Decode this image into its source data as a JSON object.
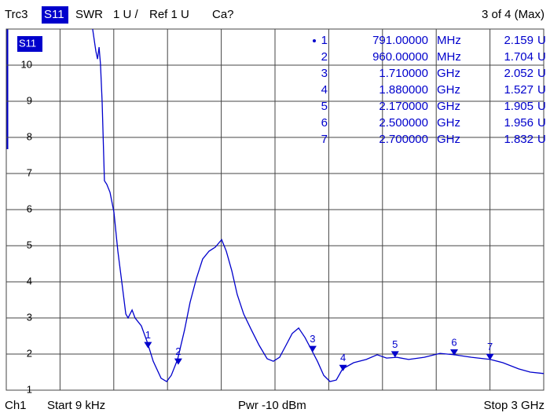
{
  "header": {
    "trace": "Trc3",
    "param": "S11",
    "format": "SWR",
    "scale": "1 U /",
    "ref": "Ref 1 U",
    "cal": "Ca?",
    "page": "3 of 4 (Max)"
  },
  "footer": {
    "channel": "Ch1",
    "start": "Start  9 kHz",
    "power": "Pwr  -10 dBm",
    "stop": "Stop  3 GHz"
  },
  "chart_data": {
    "type": "line",
    "trace_label": "S11",
    "color": "#0000cc",
    "xlim": [
      0.009,
      3000
    ],
    "ylim": [
      1,
      11
    ],
    "yticks": [
      1,
      2,
      3,
      4,
      5,
      6,
      7,
      8,
      9,
      10
    ],
    "grid": true,
    "x": [
      482,
      500,
      509,
      518,
      526,
      535,
      548,
      561,
      579,
      601,
      623,
      645,
      667,
      680,
      702,
      719,
      754,
      789,
      820,
      864,
      895,
      921,
      956,
      995,
      1026,
      1061,
      1096,
      1132,
      1167,
      1202,
      1228,
      1259,
      1289,
      1325,
      1368,
      1412,
      1456,
      1491,
      1526,
      1561,
      1596,
      1632,
      1667,
      1702,
      1737,
      1772,
      1807,
      1842,
      1877,
      1939,
      2009,
      2070,
      2123,
      2180,
      2246,
      2333,
      2421,
      2500,
      2597,
      2702,
      2772,
      2860,
      2925,
      3000
    ],
    "values": [
      11.0,
      10.39,
      10.17,
      10.5,
      10.02,
      8.98,
      6.8,
      6.7,
      6.48,
      5.93,
      4.85,
      3.98,
      3.11,
      3.0,
      3.22,
      3.0,
      2.78,
      2.3,
      1.8,
      1.33,
      1.24,
      1.41,
      1.85,
      2.67,
      3.43,
      4.09,
      4.63,
      4.85,
      4.96,
      5.17,
      4.85,
      4.3,
      3.65,
      3.11,
      2.67,
      2.24,
      1.87,
      1.8,
      1.91,
      2.24,
      2.57,
      2.72,
      2.46,
      2.13,
      1.8,
      1.41,
      1.24,
      1.28,
      1.59,
      1.76,
      1.85,
      1.98,
      1.89,
      1.91,
      1.85,
      1.91,
      2.02,
      1.98,
      1.91,
      1.85,
      1.76,
      1.59,
      1.5,
      1.46
    ],
    "value_unit": "U",
    "markers": [
      {
        "label": "1",
        "x": {
          "value": 791,
          "label": "791.00000"
        },
        "unit": "MHz",
        "value": 2.159
      },
      {
        "label": "2",
        "x": {
          "value": 960,
          "label": "960.00000"
        },
        "unit": "MHz",
        "value": 1.704
      },
      {
        "label": "3",
        "x": {
          "value": 1710,
          "label": "1.710000"
        },
        "unit": "GHz",
        "value": 2.052
      },
      {
        "label": "4",
        "x": {
          "value": 1880,
          "label": "1.880000"
        },
        "unit": "GHz",
        "value": 1.527
      },
      {
        "label": "5",
        "x": {
          "value": 2170,
          "label": "2.170000"
        },
        "unit": "GHz",
        "value": 1.905
      },
      {
        "label": "6",
        "x": {
          "value": 2500,
          "label": "2.500000"
        },
        "unit": "GHz",
        "value": 1.956
      },
      {
        "label": "7",
        "x": {
          "value": 2700,
          "label": "2.700000"
        },
        "unit": "GHz",
        "value": 1.832
      }
    ]
  }
}
